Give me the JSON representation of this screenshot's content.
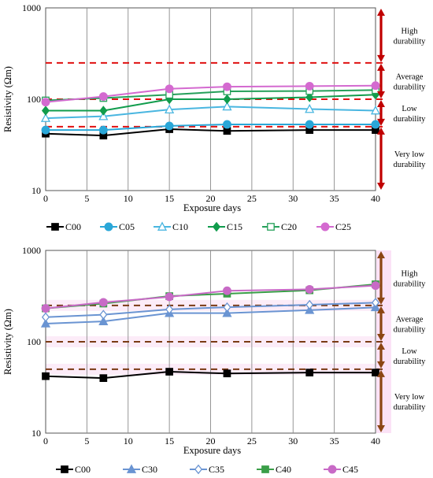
{
  "chart_data": [
    {
      "type": "line",
      "xlabel": "Exposure days",
      "ylabel": "Resistivity (Ωm)",
      "yscale": "log",
      "xlim": [
        0,
        40
      ],
      "ylim": [
        10,
        1000
      ],
      "x_ticks": [
        "0",
        "5",
        "10",
        "15",
        "20",
        "25",
        "30",
        "35",
        "40"
      ],
      "y_ticks": [
        "10",
        "100",
        "1000"
      ],
      "grid": "vertical",
      "legend_position": "bottom",
      "x": [
        0,
        7,
        15,
        22,
        32,
        40
      ],
      "series": [
        {
          "name": "C00",
          "color": "#000000",
          "marker": "square-filled",
          "values": [
            42,
            40,
            47,
            45,
            46,
            46
          ]
        },
        {
          "name": "C05",
          "color": "#2aa7d8",
          "marker": "circle-filled",
          "values": [
            46,
            46,
            51,
            53,
            53,
            53
          ]
        },
        {
          "name": "C10",
          "color": "#49b6e0",
          "marker": "triangle-open",
          "values": [
            62,
            65,
            77,
            83,
            78,
            75
          ]
        },
        {
          "name": "C15",
          "color": "#109c4c",
          "marker": "diamond-filled",
          "values": [
            75,
            75,
            100,
            100,
            105,
            112
          ]
        },
        {
          "name": "C20",
          "color": "#25a05a",
          "marker": "square-open",
          "values": [
            97,
            103,
            112,
            122,
            123,
            126
          ]
        },
        {
          "name": "C25",
          "color": "#d46ad0",
          "marker": "circle-filled",
          "values": [
            93,
            107,
            130,
            137,
            139,
            141
          ]
        }
      ],
      "thresholds": [
        250,
        100,
        50
      ],
      "threshold_color": "#e01010",
      "bands": [
        "High\ndurability",
        "Average\ndurability",
        "Low\ndurability",
        "Very low\ndurability"
      ],
      "band_color": "#c00000",
      "band_shading": false
    },
    {
      "type": "line",
      "xlabel": "Exposure days",
      "ylabel": "Resistivity (Ωm)",
      "yscale": "log",
      "xlim": [
        0,
        40
      ],
      "ylim": [
        10,
        1000
      ],
      "x_ticks": [
        "0",
        "5",
        "10",
        "15",
        "20",
        "25",
        "30",
        "35",
        "40"
      ],
      "y_ticks": [
        "10",
        "100",
        "1000"
      ],
      "grid": "vertical",
      "legend_position": "bottom",
      "x": [
        0,
        7,
        15,
        22,
        32,
        40
      ],
      "series": [
        {
          "name": "C00",
          "color": "#000000",
          "marker": "square-filled",
          "values": [
            42,
            40,
            47,
            45,
            46,
            46
          ]
        },
        {
          "name": "C30",
          "color": "#6a94d2",
          "marker": "triangle-filled",
          "values": [
            158,
            167,
            206,
            206,
            222,
            238
          ]
        },
        {
          "name": "C35",
          "color": "#6a94d2",
          "marker": "diamond-open",
          "values": [
            186,
            198,
            226,
            239,
            254,
            268
          ]
        },
        {
          "name": "C40",
          "color": "#3a9e48",
          "marker": "square-filled",
          "values": [
            232,
            262,
            316,
            336,
            366,
            426
          ]
        },
        {
          "name": "C45",
          "color": "#c86ac6",
          "marker": "circle-filled",
          "values": [
            232,
            270,
            310,
            362,
            375,
            412
          ]
        }
      ],
      "thresholds": [
        250,
        100,
        50
      ],
      "threshold_color": "#7a3a14",
      "bands": [
        "High\ndurability",
        "Average\ndurability",
        "Low\ndurability",
        "Very low\ndurability"
      ],
      "band_color": "#8b4513",
      "band_shading": true
    }
  ]
}
